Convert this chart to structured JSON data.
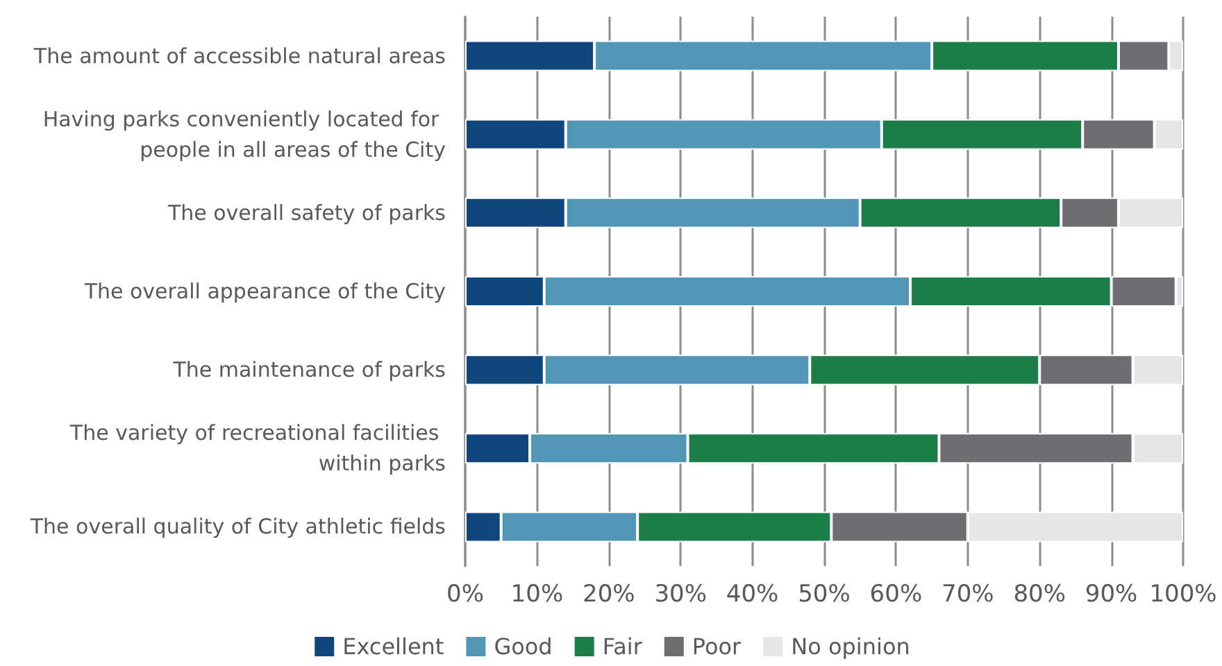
{
  "chart_data": {
    "type": "bar",
    "orientation": "horizontal",
    "stacked": true,
    "categories": [
      "The amount of accessible natural areas",
      "Having parks conveniently located for people in all areas of the City",
      "The overall safety of parks",
      "The overall appearance of the City",
      "The maintenance of parks",
      "The variety of recreational facilities within parks",
      "The overall quality of City athletic fields"
    ],
    "series": [
      {
        "name": "Excellent",
        "color": "#10457e",
        "values": [
          18,
          14,
          14,
          11,
          11,
          9,
          5
        ]
      },
      {
        "name": "Good",
        "color": "#5196b4",
        "values": [
          47,
          44,
          41,
          51,
          37,
          22,
          19
        ]
      },
      {
        "name": "Fair",
        "color": "#1c7d48",
        "values": [
          26,
          28,
          28,
          28,
          32,
          35,
          27
        ]
      },
      {
        "name": "Poor",
        "color": "#6d6e71",
        "values": [
          7,
          10,
          8,
          9,
          13,
          27,
          19
        ]
      },
      {
        "name": "No opinion",
        "color": "#e6e6e6",
        "values": [
          2,
          4,
          9,
          1,
          7,
          7,
          30
        ]
      }
    ],
    "xlim": [
      0,
      100
    ],
    "xticks": [
      {
        "value": 0,
        "label": "0%"
      },
      {
        "value": 10,
        "label": "10%"
      },
      {
        "value": 20,
        "label": "20%"
      },
      {
        "value": 30,
        "label": "30%"
      },
      {
        "value": 40,
        "label": "40%"
      },
      {
        "value": 50,
        "label": "50%"
      },
      {
        "value": 60,
        "label": "60%"
      },
      {
        "value": 70,
        "label": "70%"
      },
      {
        "value": 80,
        "label": "80%"
      },
      {
        "value": 90,
        "label": "90%"
      },
      {
        "value": 100,
        "label": "100%"
      }
    ],
    "grid": "x",
    "legend": "bottom"
  }
}
